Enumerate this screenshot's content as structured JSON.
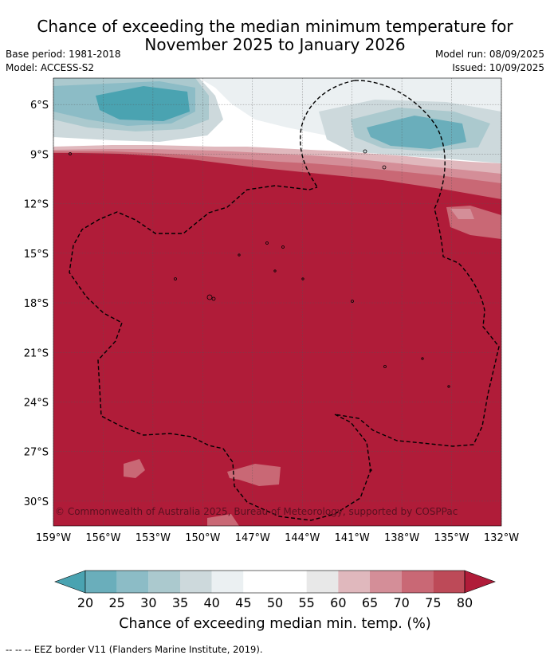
{
  "title_line1": "Chance of exceeding the median minimum temperature for",
  "title_line2": "November 2025 to January 2026",
  "meta": {
    "base_period": "Base period: 1981-2018",
    "model": "Model: ACCESS-S2",
    "model_run": "Model run: 08/09/2025",
    "issued": "Issued: 10/09/2025"
  },
  "map": {
    "lat_labels": [
      "6°S",
      "9°S",
      "12°S",
      "15°S",
      "18°S",
      "21°S",
      "24°S",
      "27°S",
      "30°S"
    ],
    "lat_values": [
      -6,
      -9,
      -12,
      -15,
      -18,
      -21,
      -24,
      -27,
      -30
    ],
    "lon_labels": [
      "159°W",
      "156°W",
      "153°W",
      "150°W",
      "147°W",
      "144°W",
      "141°W",
      "138°W",
      "135°W",
      "132°W"
    ],
    "lon_values": [
      -159,
      -156,
      -153,
      -150,
      -147,
      -144,
      -141,
      -138,
      -135,
      -132
    ],
    "lon_range": [
      -159,
      -132
    ],
    "lat_range": [
      -4.4,
      -31.5
    ],
    "dominant_category": "80",
    "copyright": "© Commonwealth of Australia 2025, Bureau of Meteorology, supported by COSPPac"
  },
  "colorbar": {
    "ticks": [
      "20",
      "25",
      "30",
      "35",
      "40",
      "45",
      "50",
      "55",
      "60",
      "65",
      "70",
      "75",
      "80"
    ],
    "colors": [
      "#4aa3b1",
      "#6aaebb",
      "#8cbcc6",
      "#abc9ce",
      "#cdd9dc",
      "#ebf0f2",
      "#ffffff",
      "#ffffff",
      "#e8e8e8",
      "#e0b8bd",
      "#d48e98",
      "#c96875",
      "#bd4a58",
      "#b01c39"
    ],
    "label": "Chance of exceeding median min. temp. (%)"
  },
  "footnote": "--  --  -- EEZ border V11 (Flanders Marine Institute, 2019)."
}
